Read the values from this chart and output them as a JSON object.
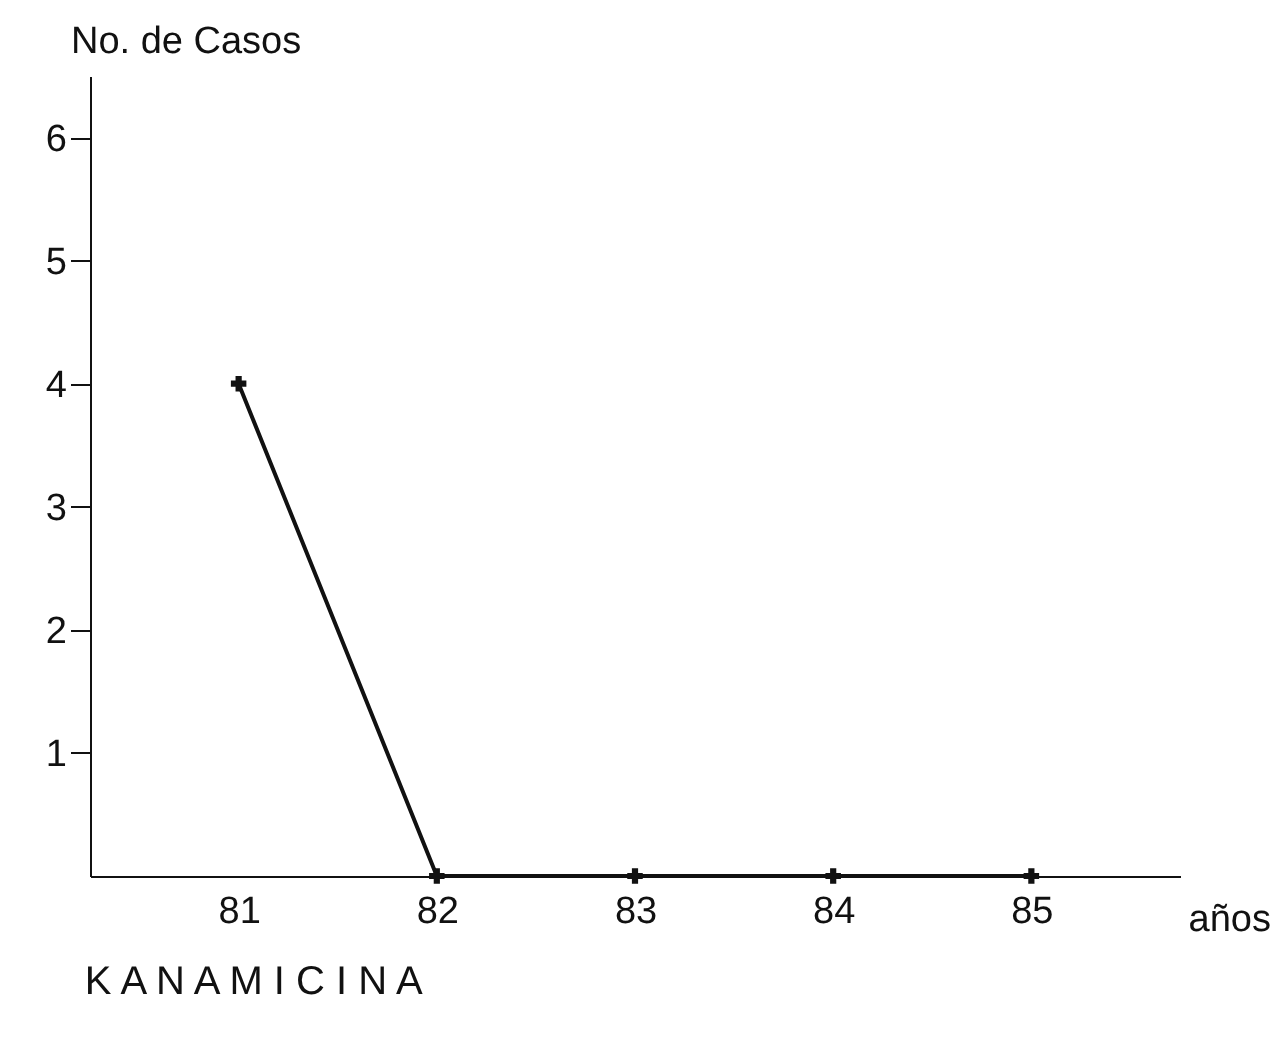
{
  "chart_data": {
    "type": "line",
    "title": "K A N A M I C I N A",
    "xlabel": "años",
    "ylabel": "No. de Casos",
    "categories": [
      "81",
      "82",
      "83",
      "84",
      "85"
    ],
    "series": [
      {
        "color": "#111111",
        "values": [
          4,
          0,
          0,
          0,
          0
        ]
      }
    ],
    "ylim": [
      0,
      6.5
    ],
    "yticks": [
      1,
      2,
      3,
      4,
      5,
      6
    ],
    "grid": false,
    "marker": "cross",
    "line_style": "solid"
  }
}
